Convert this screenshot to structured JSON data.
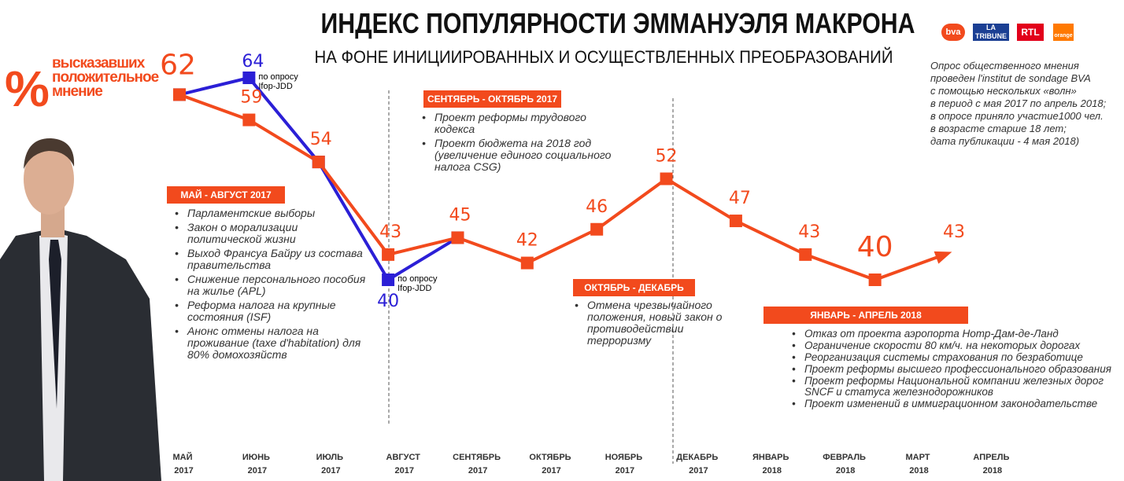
{
  "chart_data": {
    "type": "line",
    "title": "ИНДЕКС ПОПУЛЯРНОСТИ ЭММАНУЭЛЯ МАКРОНА",
    "subtitle": "НА ФОНЕ ИНИЦИИРОВАННЫХ И ОСУЩЕСТВЛЕННЫХ ПРЕОБРАЗОВАНИЙ",
    "y_label_symbol": "%",
    "y_label": "высказавших положительное мнение",
    "logos": [
      "bva",
      "LA TRIBUNE",
      "RTL",
      "orange"
    ],
    "note": [
      "Опрос общественного мнения",
      "проведен l'institut de sondage BVA",
      "с помощью нескольких «волн»",
      "в период с мая 2017 по апрель 2018;",
      "в опросе приняло участие1000 чел.",
      "в возрасте старше 18 лет;",
      "дата публикации - 4 мая 2018)"
    ],
    "categories": [
      "МАЙ 2017",
      "ИЮНЬ 2017",
      "ИЮЛЬ 2017",
      "АВГУСТ 2017",
      "СЕНТЯБРЬ 2017",
      "ОКТЯБРЬ 2017",
      "НОЯБРЬ 2017",
      "ДЕКАБРЬ 2017",
      "ЯНВАРЬ 2018",
      "ФЕВРАЛЬ 2018",
      "МАРТ 2018",
      "АПРЕЛЬ 2018"
    ],
    "series": [
      {
        "color": "#2b1fd6",
        "values": [
          62,
          64,
          54,
          40,
          45,
          null,
          null,
          null,
          null,
          null,
          null,
          null
        ],
        "source_labels": [
          "по опросу Ifop-JDD",
          "по опросу Ifop-JDD"
        ]
      },
      {
        "color": "#f24a1d",
        "values": [
          62,
          59,
          54,
          43,
          45,
          42,
          46,
          52,
          47,
          43,
          40,
          43
        ]
      }
    ],
    "annotations": [
      {
        "title": "МАЙ - АВГУСТ 2017",
        "items": [
          "Парламентские выборы",
          "Закон о морализации политической жизни",
          "Выход Франсуа Байру из состава правительства",
          "Снижение персонального пособия на жилье (APL)",
          "Реформа налога на крупные состояния (ISF)",
          "Анонс отмены налога на проживание (taxe d'habitation) для 80% домохозяйств"
        ]
      },
      {
        "title": "СЕНТЯБРЬ - ОКТЯБРЬ 2017",
        "items": [
          "Проект реформы трудового кодекса",
          "Проект бюджета на 2018 год (увеличение единого социального налога CSG)"
        ]
      },
      {
        "title": "ОКТЯБРЬ - ДЕКАБРЬ 2017",
        "items": [
          "Отмена чрезвычайного положения, новый закон о противодействии терроризму"
        ]
      },
      {
        "title": "ЯНВАРЬ - АПРЕЛЬ 2018",
        "items": [
          "Отказ от проекта аэропорта Нотр-Дам-де-Ланд",
          "Ограничение скорости 80 км/ч. на некоторых дорогах",
          "Реорганизация системы страхования по безработице",
          "Проект реформы высшего профессионального образования",
          "Проект реформы Национальной компании железных дорог SNCF и статуса железнодорожников",
          "Проект изменений в иммиграционном законодательстве"
        ]
      }
    ]
  }
}
